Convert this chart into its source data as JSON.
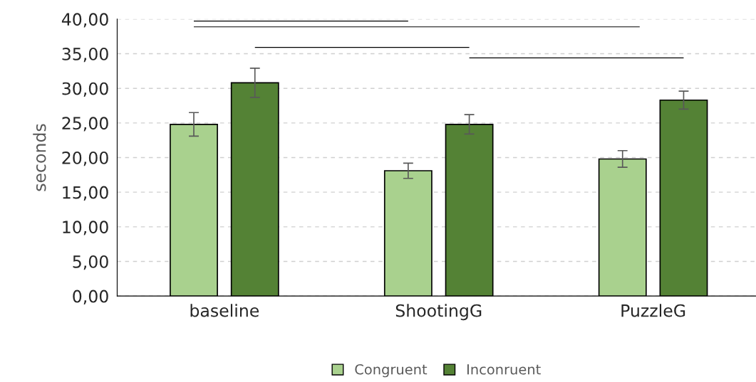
{
  "chart_data": {
    "type": "bar",
    "ylabel": "seconds",
    "categories": [
      "baseline",
      "ShootingG",
      "PuzzleG"
    ],
    "series": [
      {
        "name": "Congruent",
        "color": "#a9d18e",
        "values": [
          24.8,
          18.1,
          19.8
        ],
        "errors": [
          1.7,
          1.1,
          1.2
        ]
      },
      {
        "name": "Inconruent",
        "color": "#548235",
        "values": [
          30.8,
          24.8,
          28.3
        ],
        "errors": [
          2.1,
          1.4,
          1.3
        ]
      }
    ],
    "ylim": [
      0,
      40
    ],
    "yticks": [
      {
        "value": 0,
        "label": "0,00"
      },
      {
        "value": 5,
        "label": "5,00"
      },
      {
        "value": 10,
        "label": "10,00"
      },
      {
        "value": 15,
        "label": "15,00"
      },
      {
        "value": 20,
        "label": "20,00"
      },
      {
        "value": 25,
        "label": "25,00"
      },
      {
        "value": 30,
        "label": "30,00"
      },
      {
        "value": 35,
        "label": "35,00"
      },
      {
        "value": 40,
        "label": "40,00"
      }
    ],
    "grid": "y",
    "legend": "bottom"
  }
}
